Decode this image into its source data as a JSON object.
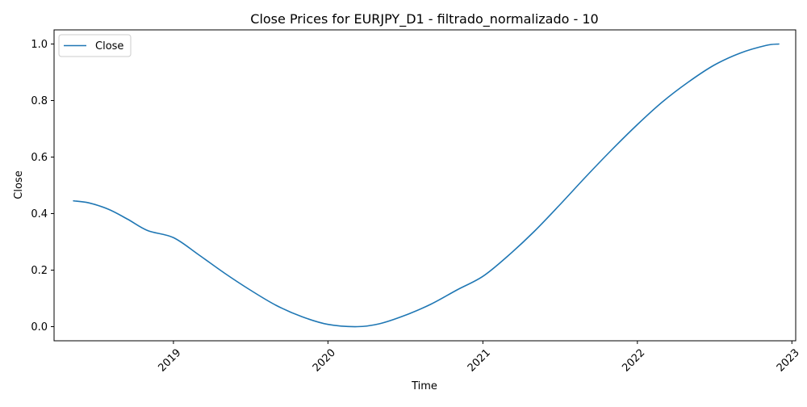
{
  "chart_data": {
    "type": "line",
    "title": "Close Prices for EURJPY_D1 - filtrado_normalizado - 10",
    "xlabel": "Time",
    "ylabel": "Close",
    "x_ticks": [
      "2019",
      "2020",
      "2021",
      "2022",
      "2023"
    ],
    "y_ticks": [
      "0.0",
      "0.2",
      "0.4",
      "0.6",
      "0.8",
      "1.0"
    ],
    "xlim": [
      "2018-03-25",
      "2023-01-10"
    ],
    "ylim": [
      -0.05,
      1.05
    ],
    "grid": false,
    "legend": {
      "position": "upper-left",
      "entries": [
        "Close"
      ]
    },
    "series": [
      {
        "name": "Close",
        "color": "#1f77b4",
        "points": [
          {
            "x": "2018-05-10",
            "y": 0.445
          },
          {
            "x": "2018-06-15",
            "y": 0.438
          },
          {
            "x": "2018-08-01",
            "y": 0.415
          },
          {
            "x": "2018-09-15",
            "y": 0.38
          },
          {
            "x": "2018-11-01",
            "y": 0.34
          },
          {
            "x": "2019-01-01",
            "y": 0.315
          },
          {
            "x": "2019-03-01",
            "y": 0.255
          },
          {
            "x": "2019-05-01",
            "y": 0.19
          },
          {
            "x": "2019-07-01",
            "y": 0.13
          },
          {
            "x": "2019-09-01",
            "y": 0.075
          },
          {
            "x": "2019-11-01",
            "y": 0.035
          },
          {
            "x": "2020-01-01",
            "y": 0.008
          },
          {
            "x": "2020-03-10",
            "y": 0.0
          },
          {
            "x": "2020-05-01",
            "y": 0.01
          },
          {
            "x": "2020-07-01",
            "y": 0.04
          },
          {
            "x": "2020-09-01",
            "y": 0.08
          },
          {
            "x": "2020-11-01",
            "y": 0.13
          },
          {
            "x": "2021-01-01",
            "y": 0.178
          },
          {
            "x": "2021-03-01",
            "y": 0.25
          },
          {
            "x": "2021-05-01",
            "y": 0.335
          },
          {
            "x": "2021-07-01",
            "y": 0.43
          },
          {
            "x": "2021-09-01",
            "y": 0.53
          },
          {
            "x": "2021-11-01",
            "y": 0.625
          },
          {
            "x": "2022-01-01",
            "y": 0.715
          },
          {
            "x": "2022-03-01",
            "y": 0.795
          },
          {
            "x": "2022-05-01",
            "y": 0.865
          },
          {
            "x": "2022-07-01",
            "y": 0.925
          },
          {
            "x": "2022-09-01",
            "y": 0.968
          },
          {
            "x": "2022-11-01",
            "y": 0.995
          },
          {
            "x": "2022-12-01",
            "y": 1.0
          }
        ]
      }
    ]
  }
}
